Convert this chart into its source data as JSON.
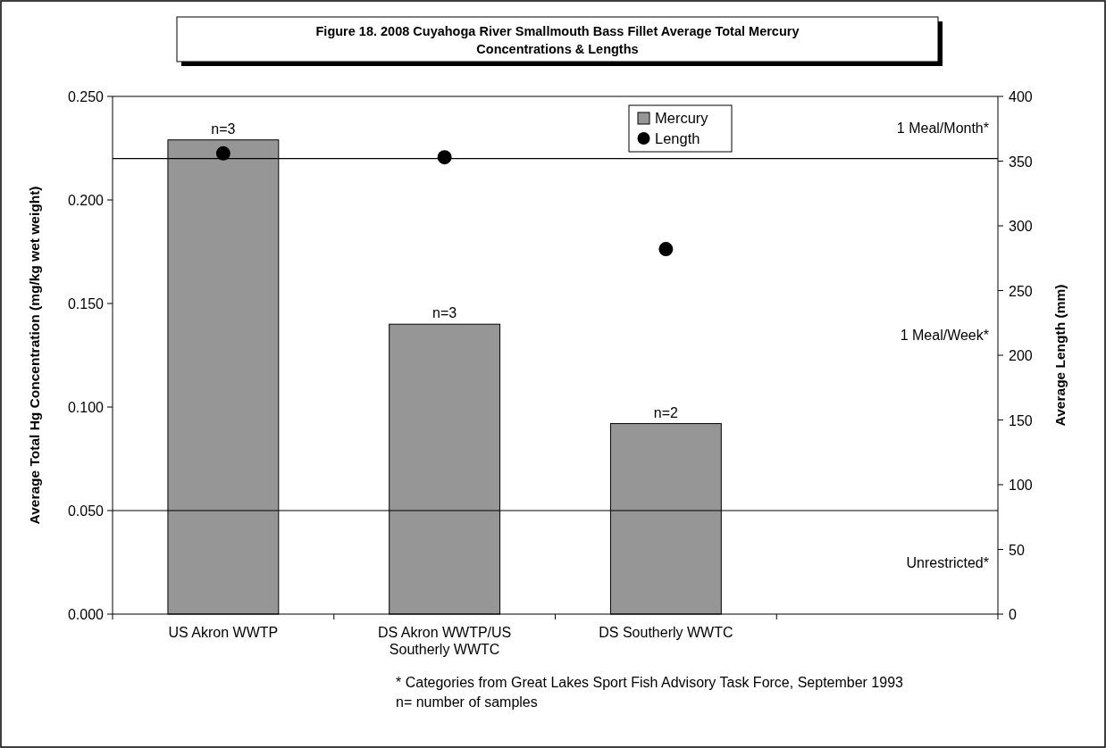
{
  "chart_data": {
    "type": "bar",
    "title": "Figure 18. 2008 Cuyahoga River Smallmouth Bass Fillet Average Total Mercury Concentrations & Lengths",
    "ylabel": "Average Total Hg Concentration (mg/kg wet weight)",
    "y2label": "Average Length (mm)",
    "categories": [
      "US Akron WWTP",
      "DS Akron WWTP/US Southerly WWTC",
      "DS Southerly WWTC",
      null
    ],
    "series": [
      {
        "name": "Mercury",
        "color": "#969696",
        "values": [
          0.229,
          0.14,
          0.092,
          null
        ]
      },
      {
        "name": "Length",
        "type": "scatter",
        "axis": "y2",
        "color": "#000000",
        "marker": "circle",
        "values": [
          356,
          353,
          282,
          null
        ]
      }
    ],
    "ylim": [
      0,
      0.25
    ],
    "yticks": [
      {
        "value": 0,
        "label": "0.000"
      },
      {
        "value": 0.05,
        "label": "0.050"
      },
      {
        "value": 0.1,
        "label": "0.100"
      },
      {
        "value": 0.15,
        "label": "0.150"
      },
      {
        "value": 0.2,
        "label": "0.200"
      },
      {
        "value": 0.25,
        "label": "0.250"
      }
    ],
    "y2lim": [
      0,
      400
    ],
    "y2ticks": [
      0,
      50,
      100,
      150,
      200,
      250,
      300,
      350,
      400
    ],
    "ref_lines": [
      {
        "axis": "y",
        "value": 0.22,
        "color": "#000000"
      },
      {
        "axis": "y",
        "value": 0.05,
        "color": "#000000"
      }
    ],
    "annotations": [
      "1 Meal/Month*",
      "1 Meal/Week*",
      "Unrestricted*",
      {
        "text": "n=3",
        "x": "US Akron WWTP",
        "y": 0.229
      },
      {
        "text": "n=3",
        "x": "DS Akron WWTP/US Southerly WWTC",
        "y": 0.14
      },
      {
        "text": "n=2",
        "x": "DS Southerly WWTC",
        "y": 0.092
      },
      "* Categories from Great Lakes Sport Fish Advisory Task Force, September 1993",
      "n= number of samples"
    ],
    "legend": "top",
    "grid": false
  }
}
